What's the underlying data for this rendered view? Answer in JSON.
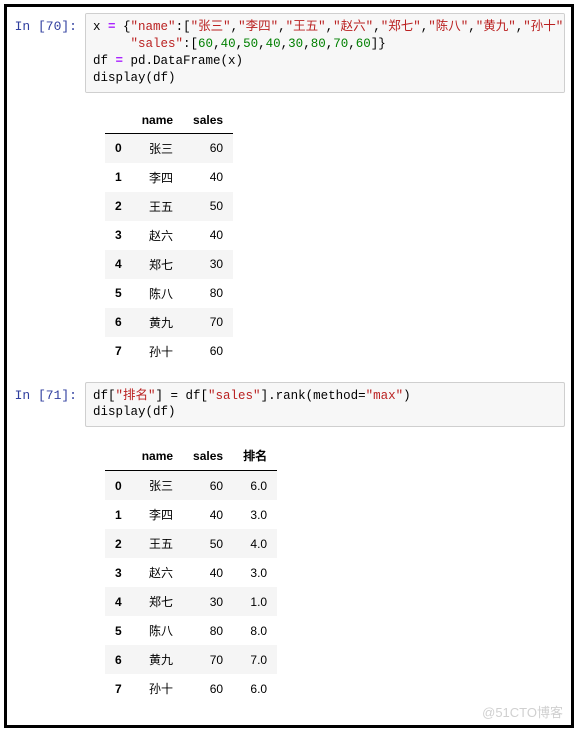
{
  "cells": [
    {
      "prompt": "In  [70]:",
      "code": {
        "line1_prefix": "x = {",
        "key_name": "\"name\"",
        "names": [
          "\"张三\"",
          "\"李四\"",
          "\"王五\"",
          "\"赵六\"",
          "\"郑七\"",
          "\"陈八\"",
          "\"黄九\"",
          "\"孙十\""
        ],
        "key_sales": "\"sales\"",
        "sales": [
          "60",
          "40",
          "50",
          "40",
          "30",
          "80",
          "70",
          "60"
        ],
        "line2": "df = pd.DataFrame(x)",
        "line3": "display(df)"
      },
      "table": {
        "columns": [
          "",
          "name",
          "sales"
        ],
        "rows": [
          [
            "0",
            "张三",
            "60"
          ],
          [
            "1",
            "李四",
            "40"
          ],
          [
            "2",
            "王五",
            "50"
          ],
          [
            "3",
            "赵六",
            "40"
          ],
          [
            "4",
            "郑七",
            "30"
          ],
          [
            "5",
            "陈八",
            "80"
          ],
          [
            "6",
            "黄九",
            "70"
          ],
          [
            "7",
            "孙十",
            "60"
          ]
        ]
      }
    },
    {
      "prompt": "In  [71]:",
      "code": {
        "raw1_a": "df[",
        "raw1_str1": "\"排名\"",
        "raw1_b": "] = df[",
        "raw1_str2": "\"sales\"",
        "raw1_c": "].rank(method=",
        "raw1_str3": "\"max\"",
        "raw1_d": ")",
        "line2": "display(df)"
      },
      "table": {
        "columns": [
          "",
          "name",
          "sales",
          "排名"
        ],
        "rows": [
          [
            "0",
            "张三",
            "60",
            "6.0"
          ],
          [
            "1",
            "李四",
            "40",
            "3.0"
          ],
          [
            "2",
            "王五",
            "50",
            "4.0"
          ],
          [
            "3",
            "赵六",
            "40",
            "3.0"
          ],
          [
            "4",
            "郑七",
            "30",
            "1.0"
          ],
          [
            "5",
            "陈八",
            "80",
            "8.0"
          ],
          [
            "6",
            "黄九",
            "70",
            "7.0"
          ],
          [
            "7",
            "孙十",
            "60",
            "6.0"
          ]
        ]
      }
    }
  ],
  "watermark": "@51CTO博客",
  "colors": {
    "prompt": "#303F9F",
    "string": "#BA2121",
    "number": "#008000",
    "row_stripe": "#f5f5f5",
    "code_bg": "#f7f7f7",
    "code_border": "#cfcfcf"
  }
}
